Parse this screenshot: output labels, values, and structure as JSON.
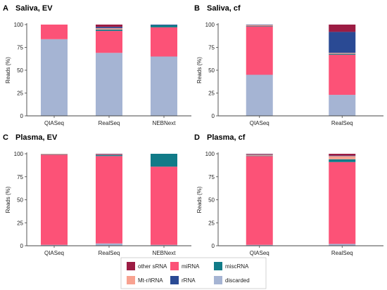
{
  "figure": {
    "segment_colors": {
      "discarded": "#a5b4d3",
      "miRNA": "#fc5277",
      "miscRNA": "#117b88",
      "Mt-r/tRNA": "#f8a290",
      "rRNA": "#2a4a94",
      "other sRNA": "#9c1c43"
    },
    "legend": {
      "entries": [
        {
          "key": "other sRNA",
          "label": "other sRNA",
          "color": "#9c1c43"
        },
        {
          "key": "Mt-r/tRNA",
          "label": "Mt-r/tRNA",
          "color": "#f8a290"
        },
        {
          "key": "miRNA",
          "label": "miRNA",
          "color": "#fc5277"
        },
        {
          "key": "rRNA",
          "label": "rRNA",
          "color": "#2a4a94"
        },
        {
          "key": "miscRNA",
          "label": "miscRNA",
          "color": "#117b88"
        },
        {
          "key": "discarded",
          "label": "discarded",
          "color": "#a5b4d3"
        }
      ]
    }
  },
  "chart_data": [
    {
      "type": "bar",
      "stacked": true,
      "panel_letter": "A",
      "title": "Saliva, EV",
      "ylabel": "Reads (%)",
      "ylim": [
        0,
        100
      ],
      "yticks": [
        0,
        25,
        50,
        75,
        100
      ],
      "categories": [
        "QIASeq",
        "RealSeq",
        "NEBNext"
      ],
      "series": [
        {
          "name": "discarded",
          "values": [
            84,
            69,
            65
          ]
        },
        {
          "name": "miRNA",
          "values": [
            16,
            24,
            32
          ]
        },
        {
          "name": "miscRNA",
          "values": [
            0,
            1.5,
            2.5
          ]
        },
        {
          "name": "Mt-r/tRNA",
          "values": [
            0,
            1.5,
            0
          ]
        },
        {
          "name": "rRNA",
          "values": [
            0,
            1.5,
            0.5
          ]
        },
        {
          "name": "other sRNA",
          "values": [
            0,
            2.5,
            0
          ]
        }
      ]
    },
    {
      "type": "bar",
      "stacked": true,
      "panel_letter": "B",
      "title": "Saliva, cf",
      "ylabel": "Reads (%)",
      "ylim": [
        0,
        100
      ],
      "yticks": [
        0,
        25,
        50,
        75,
        100
      ],
      "categories": [
        "QIASeq",
        "RealSeq"
      ],
      "series": [
        {
          "name": "discarded",
          "values": [
            45,
            23
          ]
        },
        {
          "name": "miRNA",
          "values": [
            53,
            44
          ]
        },
        {
          "name": "miscRNA",
          "values": [
            0.5,
            1
          ]
        },
        {
          "name": "Mt-r/tRNA",
          "values": [
            1,
            1
          ]
        },
        {
          "name": "rRNA",
          "values": [
            0.5,
            23
          ]
        },
        {
          "name": "other sRNA",
          "values": [
            0,
            8
          ]
        }
      ]
    },
    {
      "type": "bar",
      "stacked": true,
      "panel_letter": "C",
      "title": "Plasma, EV",
      "ylabel": "Reads (%)",
      "ylim": [
        0,
        100
      ],
      "yticks": [
        0,
        25,
        50,
        75,
        100
      ],
      "categories": [
        "QIASeq",
        "RealSeq",
        "NEBNext"
      ],
      "series": [
        {
          "name": "discarded",
          "values": [
            1,
            2.5,
            1
          ]
        },
        {
          "name": "miRNA",
          "values": [
            98,
            95,
            85
          ]
        },
        {
          "name": "miscRNA",
          "values": [
            0.5,
            1,
            14
          ]
        },
        {
          "name": "Mt-r/tRNA",
          "values": [
            0.5,
            0.5,
            0
          ]
        },
        {
          "name": "rRNA",
          "values": [
            0,
            0.5,
            0
          ]
        },
        {
          "name": "other sRNA",
          "values": [
            0,
            0.5,
            0
          ]
        }
      ]
    },
    {
      "type": "bar",
      "stacked": true,
      "panel_letter": "D",
      "title": "Plasma, cf",
      "ylabel": "Reads (%)",
      "ylim": [
        0,
        100
      ],
      "yticks": [
        0,
        25,
        50,
        75,
        100
      ],
      "categories": [
        "QIASeq",
        "RealSeq"
      ],
      "series": [
        {
          "name": "discarded",
          "values": [
            1,
            2
          ]
        },
        {
          "name": "miRNA",
          "values": [
            96.5,
            89
          ]
        },
        {
          "name": "miscRNA",
          "values": [
            0.5,
            3
          ]
        },
        {
          "name": "Mt-r/tRNA",
          "values": [
            1,
            3.5
          ]
        },
        {
          "name": "rRNA",
          "values": [
            0.5,
            0.5
          ]
        },
        {
          "name": "other sRNA",
          "values": [
            0.5,
            2
          ]
        }
      ]
    }
  ]
}
